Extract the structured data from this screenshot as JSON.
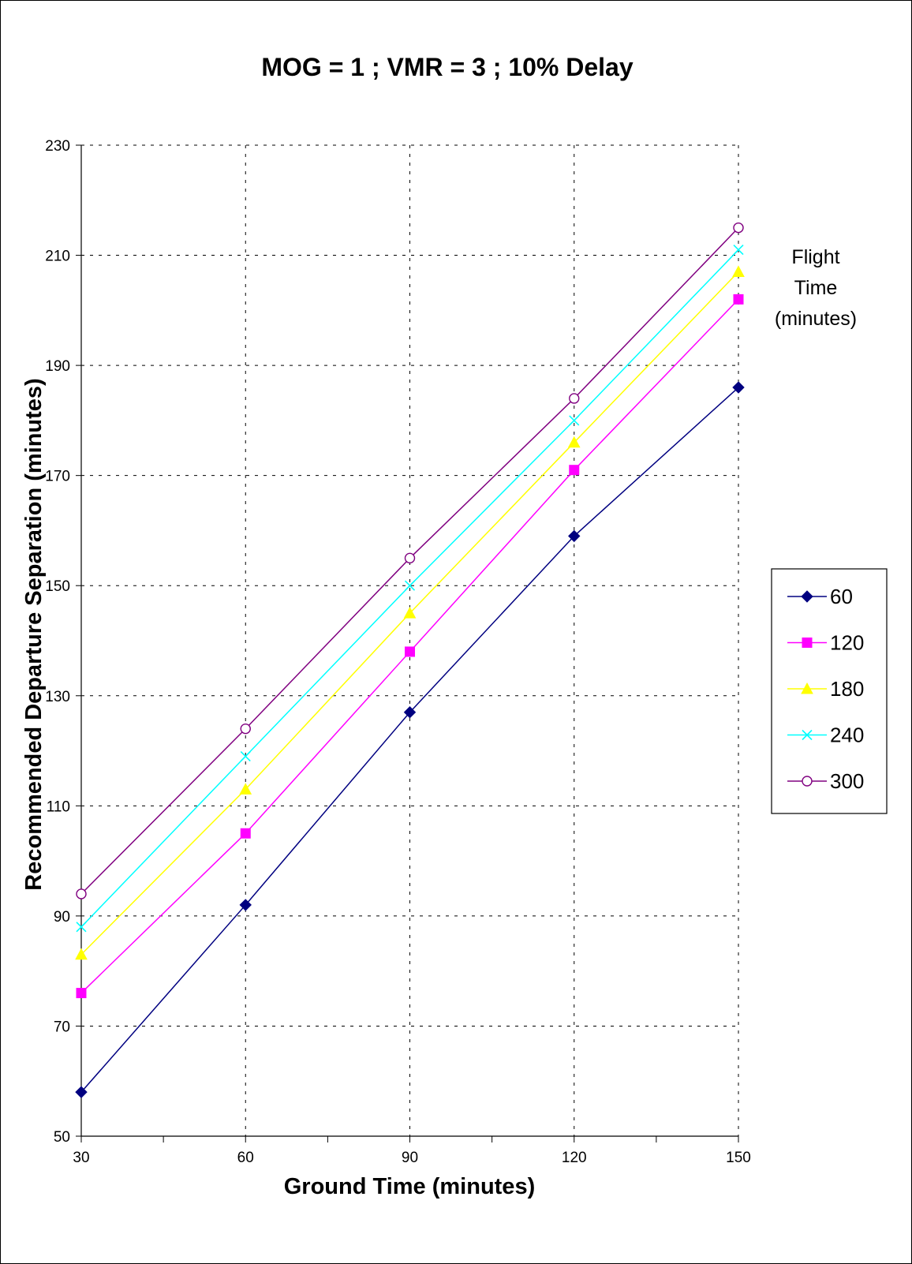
{
  "chart_data": {
    "type": "line",
    "title": "MOG = 1  ; VMR = 3  ;  10% Delay",
    "xlabel": "Ground Time (minutes)",
    "ylabel": "Recommended Departure Separation (minutes)",
    "xlim": [
      30,
      150
    ],
    "ylim": [
      50,
      230
    ],
    "x_ticks": [
      30,
      60,
      90,
      120,
      150
    ],
    "y_ticks": [
      50,
      70,
      90,
      110,
      130,
      150,
      170,
      190,
      210,
      230
    ],
    "grid": true,
    "legend": {
      "title": [
        "Flight",
        "Time",
        "(minutes)"
      ],
      "position": "right"
    },
    "x": [
      30,
      60,
      90,
      120,
      150
    ],
    "series": [
      {
        "name": "60",
        "values": [
          58,
          92,
          127,
          159,
          186
        ],
        "color": "#000080",
        "marker": "diamond"
      },
      {
        "name": "120",
        "values": [
          76,
          105,
          138,
          171,
          202
        ],
        "color": "#FF00FF",
        "marker": "square"
      },
      {
        "name": "180",
        "values": [
          83,
          113,
          145,
          176,
          207
        ],
        "color": "#FFFF00",
        "marker": "triangle"
      },
      {
        "name": "240",
        "values": [
          88,
          119,
          150,
          180,
          211
        ],
        "color": "#00FFFF",
        "marker": "x"
      },
      {
        "name": "300",
        "values": [
          94,
          124,
          155,
          184,
          215
        ],
        "color": "#800080",
        "marker": "circle"
      }
    ]
  }
}
